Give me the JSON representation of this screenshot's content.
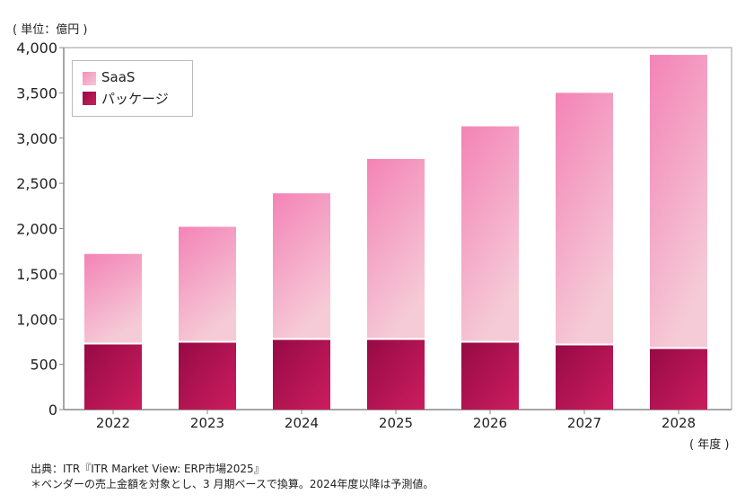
{
  "chart_data": {
    "type": "bar",
    "stacked": true,
    "unit_label": "( 単位：億円 )",
    "xlabel": "( 年度 )",
    "categories": [
      "2022",
      "2023",
      "2024",
      "2025",
      "2026",
      "2027",
      "2028"
    ],
    "series": [
      {
        "name": "パッケージ",
        "values": [
          730,
          750,
          780,
          780,
          750,
          720,
          680
        ],
        "color": "#b0104f"
      },
      {
        "name": "SaaS",
        "values": [
          990,
          1270,
          1610,
          1990,
          2380,
          2780,
          3240
        ],
        "color": "#f38fbd"
      }
    ],
    "ylim": [
      0,
      4000
    ],
    "yticks": [
      0,
      500,
      1000,
      1500,
      2000,
      2500,
      3000,
      3500,
      4000
    ],
    "ytick_labels": [
      "0",
      "500",
      "1,000",
      "1,500",
      "2,000",
      "2,500",
      "3,000",
      "3,500",
      "4,000"
    ],
    "legend_position": "top-left",
    "legend": [
      "SaaS",
      "パッケージ"
    ],
    "grid": false
  },
  "notes": {
    "source": "出典：ITR『ITR Market View: ERP市場2025』",
    "footnote": "＊ベンダーの売上金額を対象とし、3 月期ベースで換算。2024年度以降は予測値。"
  }
}
